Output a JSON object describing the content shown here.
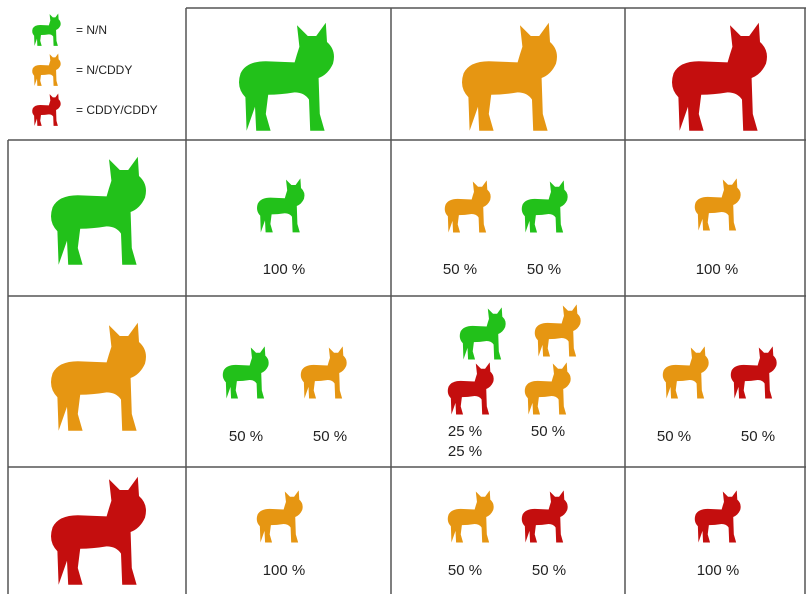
{
  "legend": [
    "= N/N",
    "= N/CDDY",
    "= CDDY/CDDY"
  ],
  "rows": [
    {
      "cells": [
        {
          "labels": [
            "100 %"
          ]
        },
        {
          "labels": [
            "50 %",
            "50 %"
          ]
        },
        {
          "labels": [
            "100 %"
          ]
        }
      ]
    },
    {
      "cells": [
        {
          "labels": [
            "50 %",
            "50 %"
          ]
        },
        {
          "labels": [
            "25 %",
            "25 %",
            "50 %"
          ]
        },
        {
          "labels": [
            "50 %",
            "50 %"
          ]
        }
      ]
    },
    {
      "cells": [
        {
          "labels": [
            "100 %"
          ]
        },
        {
          "labels": [
            "50 %",
            "50 %"
          ]
        },
        {
          "labels": [
            "100 %"
          ]
        }
      ]
    }
  ]
}
